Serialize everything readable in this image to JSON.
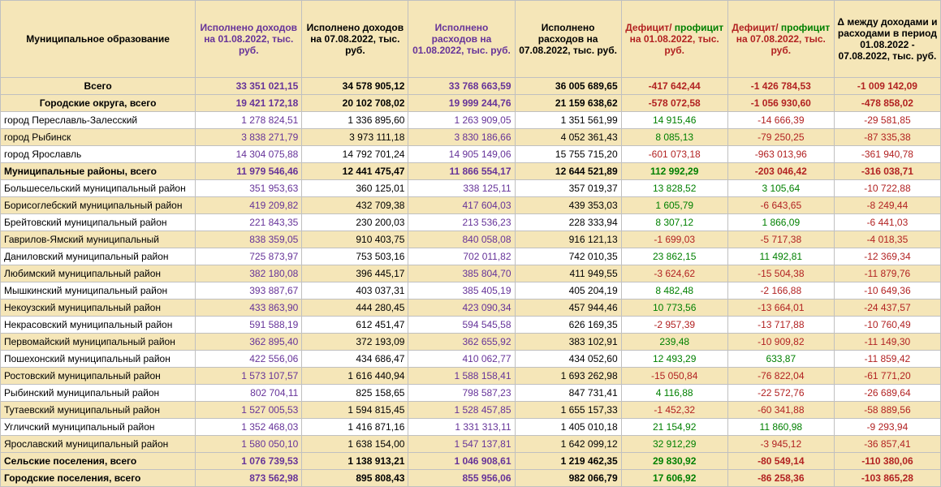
{
  "headers": [
    "Муниципальное образование",
    "Исполнено доходов на 01.08.2022, тыс. руб.",
    "Исполнено доходов на 07.08.2022, тыс. руб.",
    "Исполнено расходов на 01.08.2022, тыс. руб.",
    "Исполнено расходов на 07.08.2022, тыс. руб.",
    "Дефицит/ профицит на 01.08.2022, тыс. руб.",
    "Дефицит/ профицит на 07.08.2022, тыс. руб.",
    "Δ между доходами и расходами в период 01.08.2022 - 07.08.2022, тыс. руб."
  ],
  "rows": [
    {
      "class": "total-row",
      "labelClass": "label-center",
      "label": "Всего",
      "c1": "33 351 021,15",
      "c2": "34 578 905,12",
      "c3": "33 768 663,59",
      "c4": "36 005 689,65",
      "c5": {
        "v": "-417 642,44",
        "cls": "red"
      },
      "c6": {
        "v": "-1 426 784,53",
        "cls": "red"
      },
      "c7": {
        "v": "-1 009 142,09",
        "cls": "red"
      }
    },
    {
      "class": "total-row",
      "labelClass": "label-center",
      "label": "Городские округа, всего",
      "c1": "19 421 172,18",
      "c2": "20 102 708,02",
      "c3": "19 999 244,76",
      "c4": "21 159 638,62",
      "c5": {
        "v": "-578 072,58",
        "cls": "red"
      },
      "c6": {
        "v": "-1 056 930,60",
        "cls": "red"
      },
      "c7": {
        "v": "-478 858,02",
        "cls": "red"
      }
    },
    {
      "class": "stripe-light",
      "labelClass": "label",
      "label": "город Переславль-Залесский",
      "c1": "1 278 824,51",
      "c2": "1 336 895,60",
      "c3": "1 263 909,05",
      "c4": "1 351 561,99",
      "c5": {
        "v": "14 915,46",
        "cls": "green"
      },
      "c6": {
        "v": "-14 666,39",
        "cls": "red"
      },
      "c7": {
        "v": "-29 581,85",
        "cls": "red"
      }
    },
    {
      "class": "stripe-dark",
      "labelClass": "label",
      "label": "город Рыбинск",
      "c1": "3 838 271,79",
      "c2": "3 973 111,18",
      "c3": "3 830 186,66",
      "c4": "4 052 361,43",
      "c5": {
        "v": "8 085,13",
        "cls": "green"
      },
      "c6": {
        "v": "-79 250,25",
        "cls": "red"
      },
      "c7": {
        "v": "-87 335,38",
        "cls": "red"
      }
    },
    {
      "class": "stripe-light",
      "labelClass": "label",
      "label": "город Ярославль",
      "c1": "14 304 075,88",
      "c2": "14 792 701,24",
      "c3": "14 905 149,06",
      "c4": "15 755 715,20",
      "c5": {
        "v": "-601 073,18",
        "cls": "red"
      },
      "c6": {
        "v": "-963 013,96",
        "cls": "red"
      },
      "c7": {
        "v": "-361 940,78",
        "cls": "red"
      }
    },
    {
      "class": "total-row",
      "labelClass": "label",
      "label": "Муниципальные районы, всего",
      "c1": "11 979 546,46",
      "c2": "12 441 475,47",
      "c3": "11 866 554,17",
      "c4": "12 644 521,89",
      "c5": {
        "v": "112 992,29",
        "cls": "green"
      },
      "c6": {
        "v": "-203 046,42",
        "cls": "red"
      },
      "c7": {
        "v": "-316 038,71",
        "cls": "red"
      }
    },
    {
      "class": "stripe-light",
      "labelClass": "label",
      "label": "Большесельский муниципальный район",
      "c1": "351 953,63",
      "c2": "360 125,01",
      "c3": "338 125,11",
      "c4": "357 019,37",
      "c5": {
        "v": "13 828,52",
        "cls": "green"
      },
      "c6": {
        "v": "3 105,64",
        "cls": "green"
      },
      "c7": {
        "v": "-10 722,88",
        "cls": "red"
      }
    },
    {
      "class": "stripe-dark",
      "labelClass": "label",
      "label": "Борисоглебский муниципальный район",
      "c1": "419 209,82",
      "c2": "432 709,38",
      "c3": "417 604,03",
      "c4": "439 353,03",
      "c5": {
        "v": "1 605,79",
        "cls": "green"
      },
      "c6": {
        "v": "-6 643,65",
        "cls": "red"
      },
      "c7": {
        "v": "-8 249,44",
        "cls": "red"
      }
    },
    {
      "class": "stripe-light",
      "labelClass": "label",
      "label": "Брейтовский муниципальный район",
      "c1": "221 843,35",
      "c2": "230 200,03",
      "c3": "213 536,23",
      "c4": "228 333,94",
      "c5": {
        "v": "8 307,12",
        "cls": "green"
      },
      "c6": {
        "v": "1 866,09",
        "cls": "green"
      },
      "c7": {
        "v": "-6 441,03",
        "cls": "red"
      }
    },
    {
      "class": "stripe-dark",
      "labelClass": "label",
      "label": "Гаврилов-Ямский муниципальный",
      "c1": "838 359,05",
      "c2": "910 403,75",
      "c3": "840 058,08",
      "c4": "916 121,13",
      "c5": {
        "v": "-1 699,03",
        "cls": "red"
      },
      "c6": {
        "v": "-5 717,38",
        "cls": "red"
      },
      "c7": {
        "v": "-4 018,35",
        "cls": "red"
      }
    },
    {
      "class": "stripe-light",
      "labelClass": "label",
      "label": "Даниловский муниципальный район",
      "c1": "725 873,97",
      "c2": "753 503,16",
      "c3": "702 011,82",
      "c4": "742 010,35",
      "c5": {
        "v": "23 862,15",
        "cls": "green"
      },
      "c6": {
        "v": "11 492,81",
        "cls": "green"
      },
      "c7": {
        "v": "-12 369,34",
        "cls": "red"
      }
    },
    {
      "class": "stripe-dark",
      "labelClass": "label",
      "label": "Любимский муниципальный район",
      "c1": "382 180,08",
      "c2": "396 445,17",
      "c3": "385 804,70",
      "c4": "411 949,55",
      "c5": {
        "v": "-3 624,62",
        "cls": "red"
      },
      "c6": {
        "v": "-15 504,38",
        "cls": "red"
      },
      "c7": {
        "v": "-11 879,76",
        "cls": "red"
      }
    },
    {
      "class": "stripe-light",
      "labelClass": "label",
      "label": "Мышкинский муниципальный район",
      "c1": "393 887,67",
      "c2": "403 037,31",
      "c3": "385 405,19",
      "c4": "405 204,19",
      "c5": {
        "v": "8 482,48",
        "cls": "green"
      },
      "c6": {
        "v": "-2 166,88",
        "cls": "red"
      },
      "c7": {
        "v": "-10 649,36",
        "cls": "red"
      }
    },
    {
      "class": "stripe-dark",
      "labelClass": "label",
      "label": "Некоузский муниципальный район",
      "c1": "433 863,90",
      "c2": "444 280,45",
      "c3": "423 090,34",
      "c4": "457 944,46",
      "c5": {
        "v": "10 773,56",
        "cls": "green"
      },
      "c6": {
        "v": "-13 664,01",
        "cls": "red"
      },
      "c7": {
        "v": "-24 437,57",
        "cls": "red"
      }
    },
    {
      "class": "stripe-light",
      "labelClass": "label",
      "label": "Некрасовский муниципальный район",
      "c1": "591 588,19",
      "c2": "612 451,47",
      "c3": "594 545,58",
      "c4": "626 169,35",
      "c5": {
        "v": "-2 957,39",
        "cls": "red"
      },
      "c6": {
        "v": "-13 717,88",
        "cls": "red"
      },
      "c7": {
        "v": "-10 760,49",
        "cls": "red"
      }
    },
    {
      "class": "stripe-dark",
      "labelClass": "label",
      "label": "Первомайский муниципальный район",
      "c1": "362 895,40",
      "c2": "372 193,09",
      "c3": "362 655,92",
      "c4": "383 102,91",
      "c5": {
        "v": "239,48",
        "cls": "green"
      },
      "c6": {
        "v": "-10 909,82",
        "cls": "red"
      },
      "c7": {
        "v": "-11 149,30",
        "cls": "red"
      }
    },
    {
      "class": "stripe-light",
      "labelClass": "label",
      "label": "Пошехонский муниципальный район",
      "c1": "422 556,06",
      "c2": "434 686,47",
      "c3": "410 062,77",
      "c4": "434 052,60",
      "c5": {
        "v": "12 493,29",
        "cls": "green"
      },
      "c6": {
        "v": "633,87",
        "cls": "green"
      },
      "c7": {
        "v": "-11 859,42",
        "cls": "red"
      }
    },
    {
      "class": "stripe-dark",
      "labelClass": "label",
      "label": "Ростовский муниципальный район",
      "c1": "1 573 107,57",
      "c2": "1 616 440,94",
      "c3": "1 588 158,41",
      "c4": "1 693 262,98",
      "c5": {
        "v": "-15 050,84",
        "cls": "red"
      },
      "c6": {
        "v": "-76 822,04",
        "cls": "red"
      },
      "c7": {
        "v": "-61 771,20",
        "cls": "red"
      }
    },
    {
      "class": "stripe-light",
      "labelClass": "label",
      "label": "Рыбинский муниципальный район",
      "c1": "802 704,11",
      "c2": "825 158,65",
      "c3": "798 587,23",
      "c4": "847 731,41",
      "c5": {
        "v": "4 116,88",
        "cls": "green"
      },
      "c6": {
        "v": "-22 572,76",
        "cls": "red"
      },
      "c7": {
        "v": "-26 689,64",
        "cls": "red"
      }
    },
    {
      "class": "stripe-dark",
      "labelClass": "label",
      "label": "Тутаевский муниципальный район",
      "c1": "1 527 005,53",
      "c2": "1 594 815,45",
      "c3": "1 528 457,85",
      "c4": "1 655 157,33",
      "c5": {
        "v": "-1 452,32",
        "cls": "red"
      },
      "c6": {
        "v": "-60 341,88",
        "cls": "red"
      },
      "c7": {
        "v": "-58 889,56",
        "cls": "red"
      }
    },
    {
      "class": "stripe-light",
      "labelClass": "label",
      "label": "Угличский муниципальный район",
      "c1": "1 352 468,03",
      "c2": "1 416 871,16",
      "c3": "1 331 313,11",
      "c4": "1 405 010,18",
      "c5": {
        "v": "21 154,92",
        "cls": "green"
      },
      "c6": {
        "v": "11 860,98",
        "cls": "green"
      },
      "c7": {
        "v": "-9 293,94",
        "cls": "red"
      }
    },
    {
      "class": "stripe-dark",
      "labelClass": "label",
      "label": "Ярославский муниципальный район",
      "c1": "1 580 050,10",
      "c2": "1 638 154,00",
      "c3": "1 547 137,81",
      "c4": "1 642 099,12",
      "c5": {
        "v": "32 912,29",
        "cls": "green"
      },
      "c6": {
        "v": "-3 945,12",
        "cls": "red"
      },
      "c7": {
        "v": "-36 857,41",
        "cls": "red"
      }
    },
    {
      "class": "total-row",
      "labelClass": "label",
      "label": "Сельские поселения, всего",
      "c1": "1 076 739,53",
      "c2": "1 138 913,21",
      "c3": "1 046 908,61",
      "c4": "1 219 462,35",
      "c5": {
        "v": "29 830,92",
        "cls": "green"
      },
      "c6": {
        "v": "-80 549,14",
        "cls": "red"
      },
      "c7": {
        "v": "-110 380,06",
        "cls": "red"
      }
    },
    {
      "class": "total-row",
      "labelClass": "label",
      "label": "Городские поселения, всего",
      "c1": "873 562,98",
      "c2": "895 808,43",
      "c3": "855 956,06",
      "c4": "982 066,79",
      "c5": {
        "v": "17 606,92",
        "cls": "green"
      },
      "c6": {
        "v": "-86 258,36",
        "cls": "red"
      },
      "c7": {
        "v": "-103 865,28",
        "cls": "red"
      }
    }
  ]
}
